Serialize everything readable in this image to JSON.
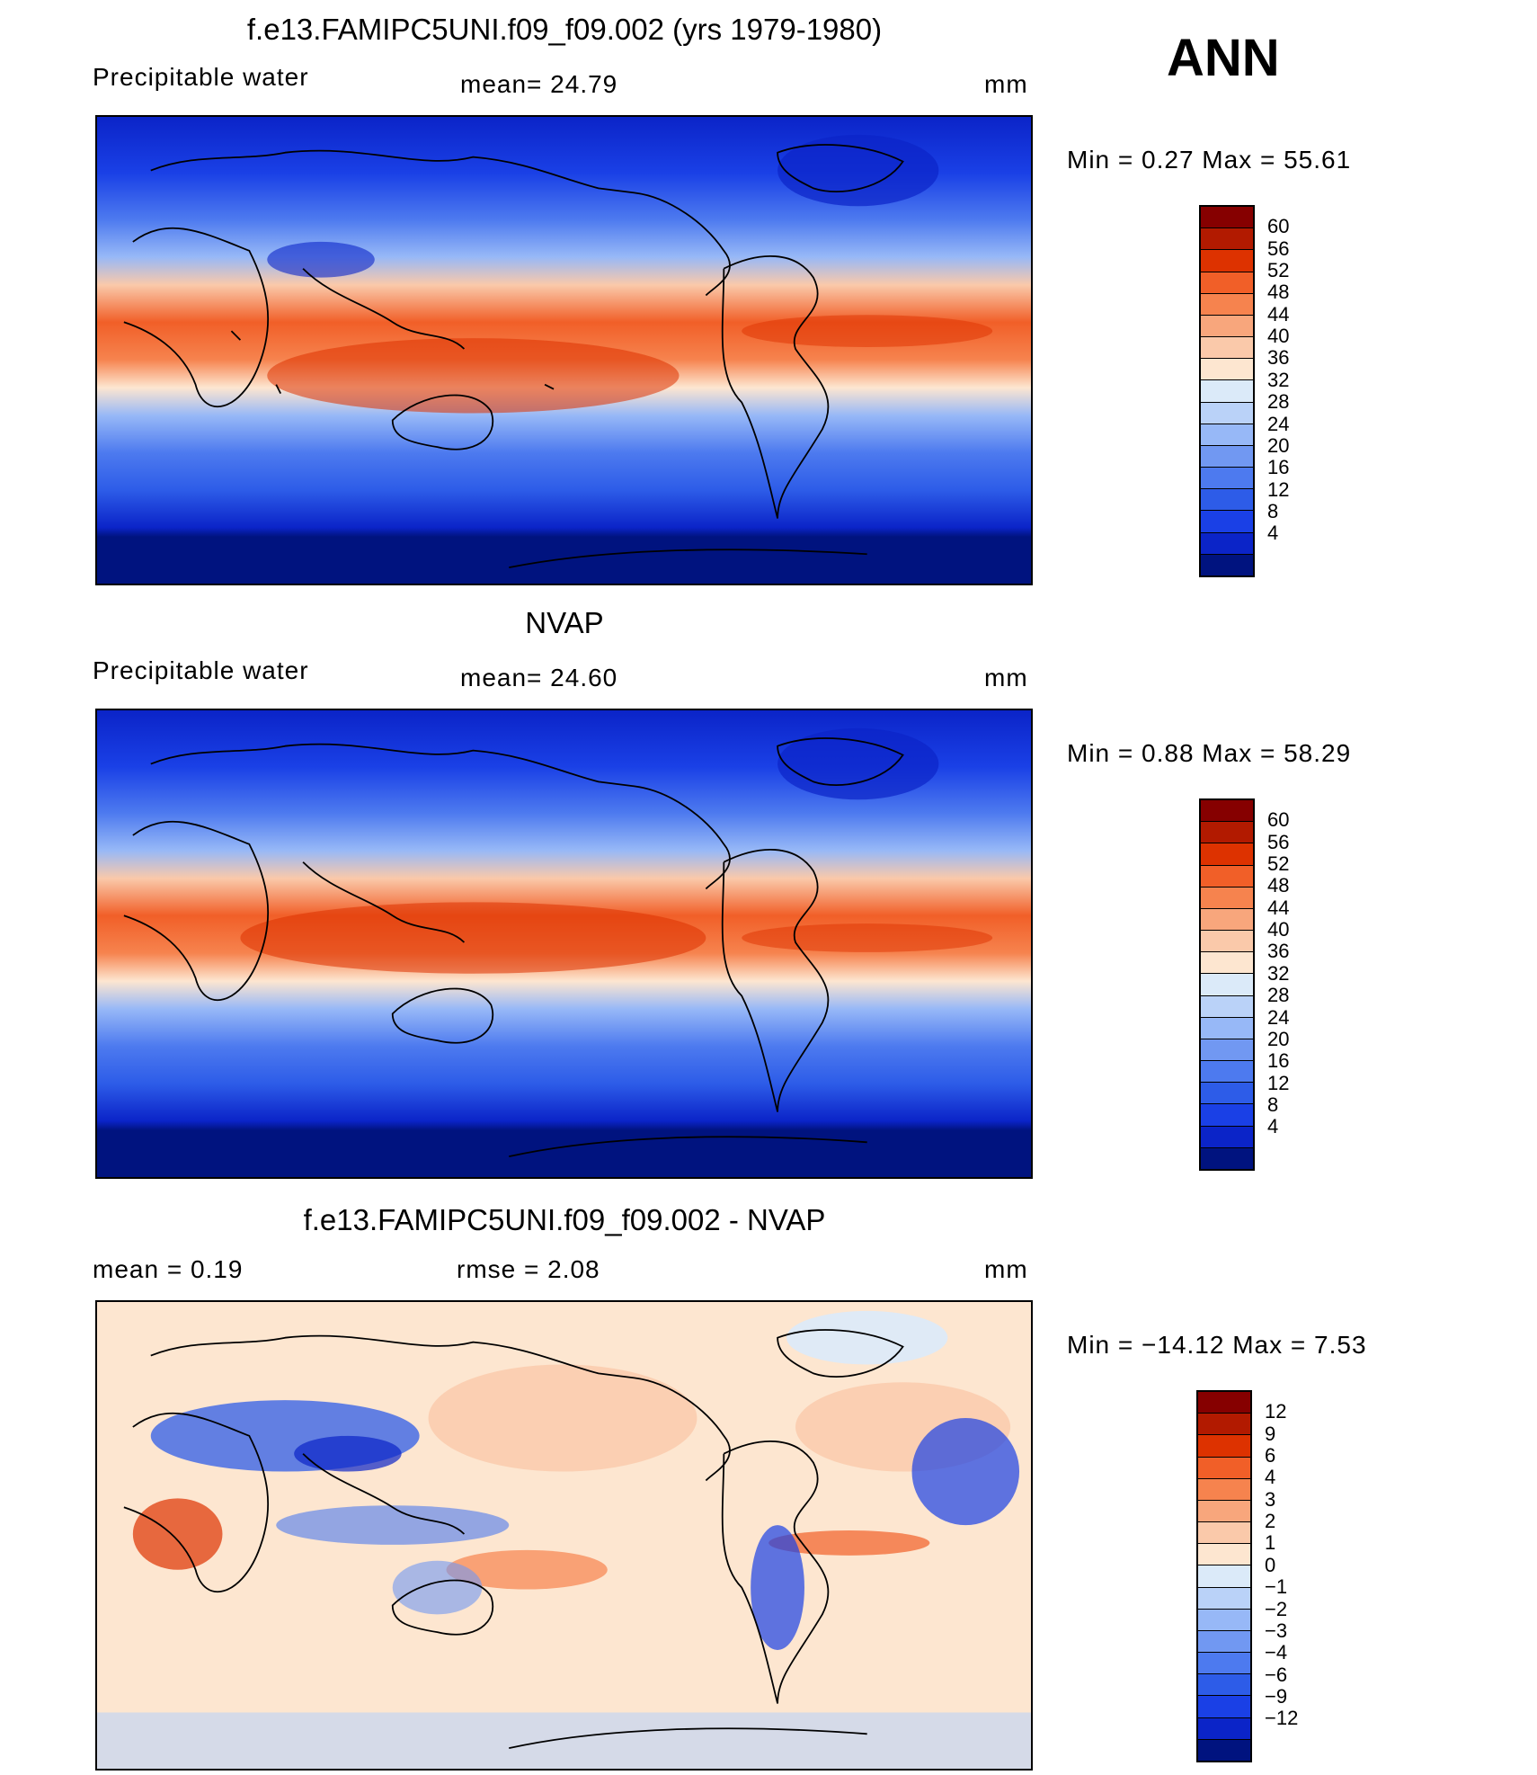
{
  "annual_label": "ANN",
  "panels": [
    {
      "id": "model",
      "title": "f.e13.FAMIPC5UNI.f09_f09.002 (yrs 1979-1980)",
      "variable": "Precipitable  water",
      "stat1": "mean=   24.79",
      "stat2": "",
      "units": "mm",
      "minmax": "Min  =     0.27  Max  =     55.61",
      "colorbar": {
        "colors": [
          "#860000",
          "#b21a00",
          "#dd3200",
          "#f15f28",
          "#f6834e",
          "#f8a67c",
          "#fac9aa",
          "#fde6d0",
          "#dbeaf9",
          "#bad2f8",
          "#97b8f7",
          "#7198f2",
          "#4d7aef",
          "#2d5ce8",
          "#1a40e6",
          "#0b24c8",
          "#00137f"
        ],
        "ticks": [
          "60",
          "56",
          "52",
          "48",
          "44",
          "40",
          "36",
          "32",
          "28",
          "24",
          "20",
          "16",
          "12",
          "8",
          "4"
        ]
      }
    },
    {
      "id": "obs",
      "title": "NVAP",
      "variable": "Precipitable  water",
      "stat1": "mean=   24.60",
      "stat2": "",
      "units": "mm",
      "minmax": "Min  =     0.88  Max  =     58.29",
      "colorbar": {
        "colors": [
          "#860000",
          "#b21a00",
          "#dd3200",
          "#f15f28",
          "#f6834e",
          "#f8a67c",
          "#fac9aa",
          "#fde6d0",
          "#dbeaf9",
          "#bad2f8",
          "#97b8f7",
          "#7198f2",
          "#4d7aef",
          "#2d5ce8",
          "#1a40e6",
          "#0b24c8",
          "#00137f"
        ],
        "ticks": [
          "60",
          "56",
          "52",
          "48",
          "44",
          "40",
          "36",
          "32",
          "28",
          "24",
          "20",
          "16",
          "12",
          "8",
          "4"
        ]
      }
    },
    {
      "id": "diff",
      "title": "f.e13.FAMIPC5UNI.f09_f09.002 - NVAP",
      "variable": "mean  =     0.19",
      "stat1": "rmse  =     2.08",
      "stat2": "",
      "units": "mm",
      "minmax": "Min  = −14.12  Max  =      7.53",
      "colorbar": {
        "colors": [
          "#860000",
          "#b21a00",
          "#dd3200",
          "#f15f28",
          "#f6834e",
          "#f8a67c",
          "#fac9aa",
          "#fde6d0",
          "#dbeaf9",
          "#bad2f8",
          "#97b8f7",
          "#7198f2",
          "#4d7aef",
          "#2d5ce8",
          "#1a40e6",
          "#0b24c8",
          "#00137f"
        ],
        "ticks": [
          "12",
          "9",
          "6",
          "4",
          "3",
          "2",
          "1",
          "0",
          "−1",
          "−2",
          "−3",
          "−4",
          "−6",
          "−9",
          "−12"
        ]
      }
    }
  ]
}
